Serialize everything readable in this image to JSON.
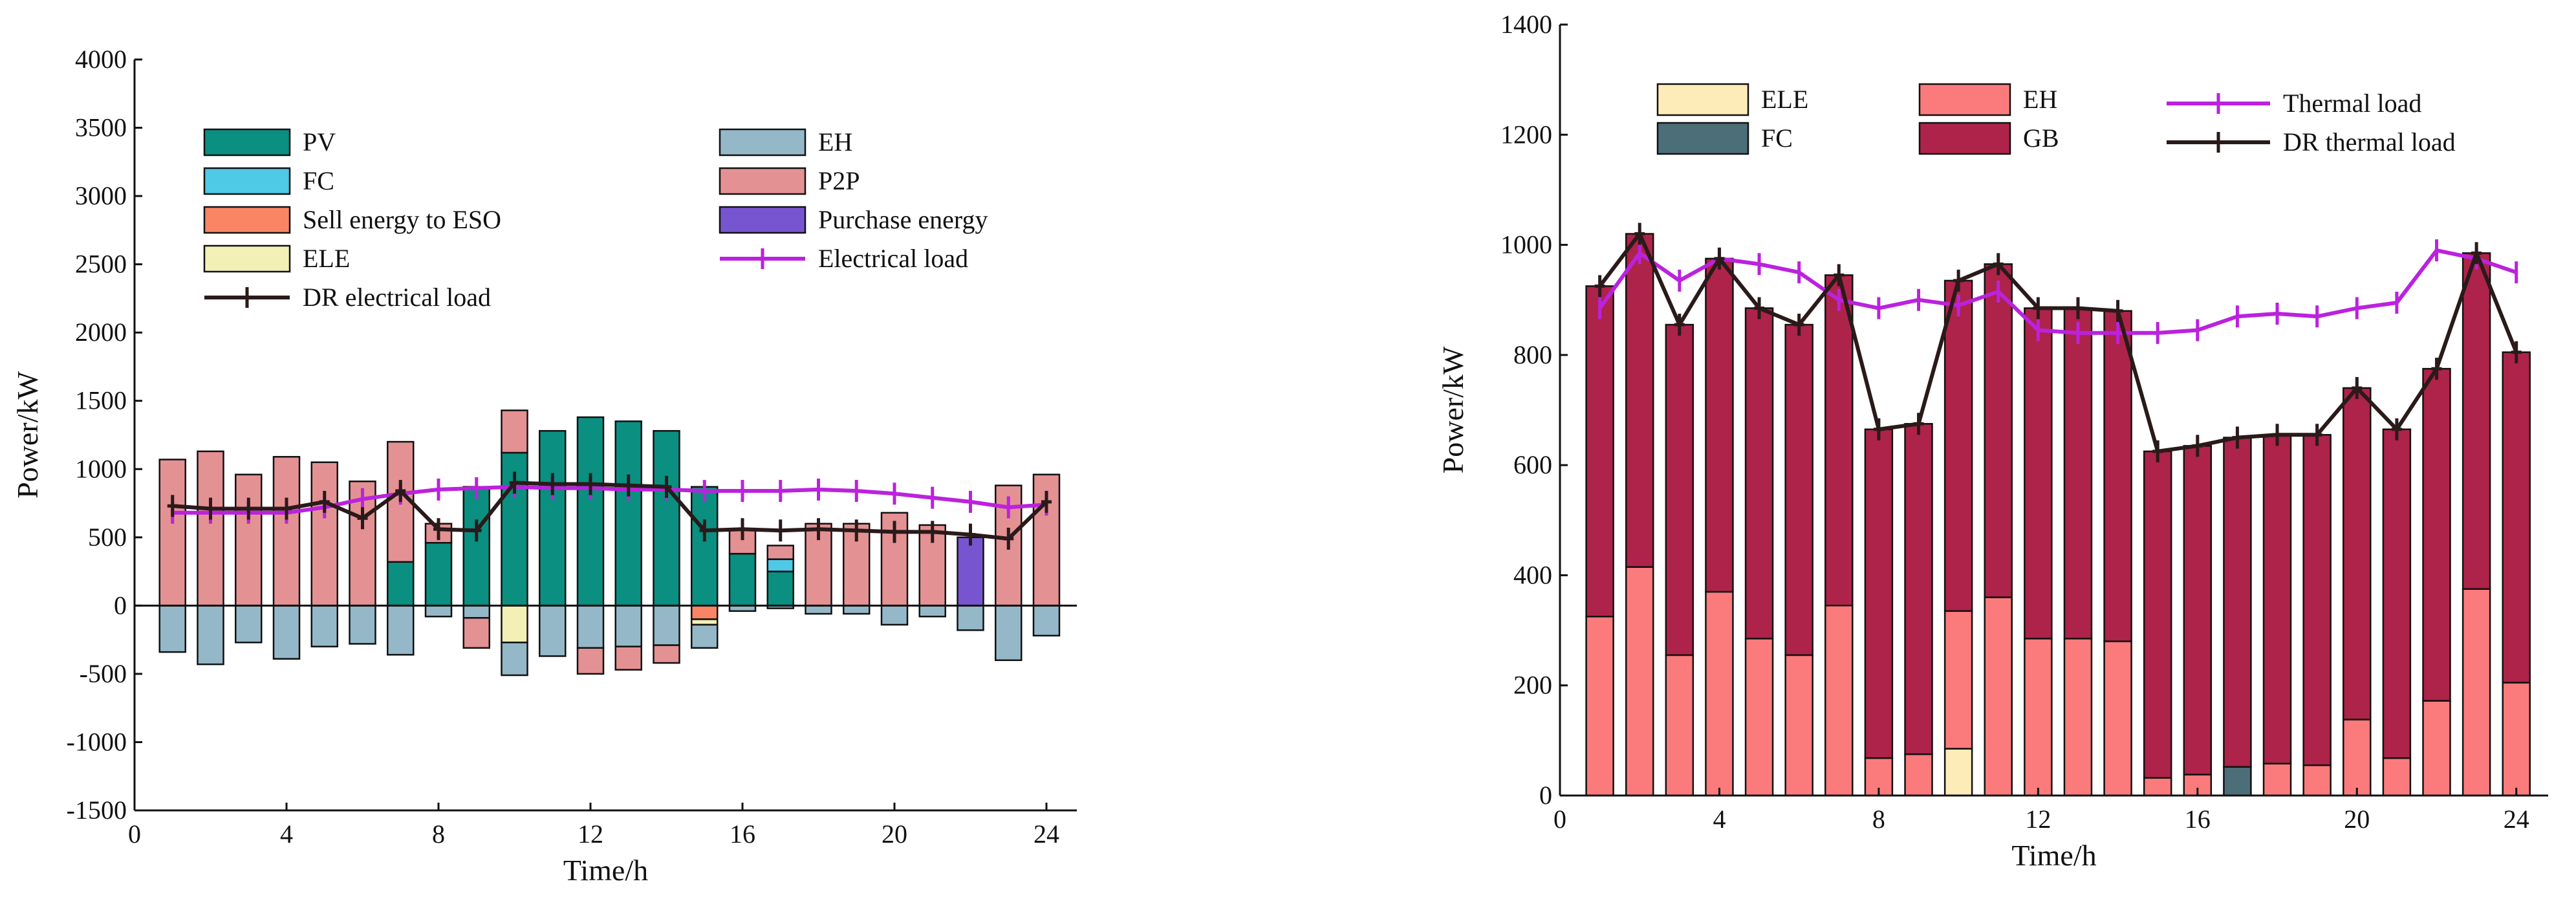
{
  "colors": {
    "PV": "#0a8f80",
    "FC": "#4ec9e6",
    "Sell energy to ESO": "#f98564",
    "ELE": "#f2f0b4",
    "EH": "#94b8c8",
    "P2P": "#e49194",
    "Purchase energy": "#7755d0",
    "Electrical load": "#bb22dd",
    "DR electrical load": "#2a1a1a",
    "ELE_thermal": "#fdebb8",
    "FC_thermal": "#4b6e78",
    "EH_thermal": "#fb7b7c",
    "GB": "#ae2349",
    "Thermal load": "#bb22dd",
    "DR thermal load": "#2a1a1a"
  },
  "chart_data": [
    {
      "type": "bar",
      "title": "",
      "xlabel": "Time/h",
      "ylabel": "Power/kW",
      "xlim": [
        0,
        24.8
      ],
      "ylim": [
        -1500,
        4000
      ],
      "xticks": [
        0,
        4,
        8,
        12,
        16,
        20,
        24
      ],
      "yticks": [
        -1500,
        -1000,
        -500,
        0,
        500,
        1000,
        1500,
        2000,
        2500,
        3000,
        3500,
        4000
      ],
      "grid": false,
      "legend_location": "top",
      "x": [
        1,
        2,
        3,
        4,
        5,
        6,
        7,
        8,
        9,
        10,
        11,
        12,
        13,
        14,
        15,
        16,
        17,
        18,
        19,
        20,
        21,
        22,
        23,
        24
      ],
      "series": [
        {
          "name": "PV",
          "kind": "bar",
          "values": [
            0,
            0,
            0,
            0,
            0,
            0,
            320,
            460,
            870,
            1120,
            1280,
            1380,
            1350,
            1280,
            870,
            380,
            250,
            0,
            0,
            0,
            0,
            0,
            0,
            0
          ]
        },
        {
          "name": "FC",
          "kind": "bar",
          "values": [
            0,
            0,
            0,
            0,
            0,
            0,
            0,
            0,
            0,
            0,
            0,
            0,
            0,
            0,
            0,
            0,
            90,
            0,
            0,
            0,
            0,
            0,
            0,
            0
          ]
        },
        {
          "name": "Sell energy to ESO",
          "kind": "bar",
          "values": [
            0,
            0,
            0,
            0,
            0,
            0,
            0,
            0,
            0,
            0,
            0,
            0,
            0,
            0,
            -100,
            0,
            0,
            0,
            0,
            0,
            0,
            0,
            0,
            0
          ]
        },
        {
          "name": "ELE",
          "kind": "bar",
          "values": [
            0,
            0,
            0,
            0,
            0,
            0,
            0,
            0,
            0,
            -270,
            0,
            0,
            0,
            0,
            -40,
            0,
            0,
            0,
            0,
            0,
            0,
            0,
            0,
            0
          ]
        },
        {
          "name": "EH",
          "kind": "bar",
          "values": [
            -340,
            -430,
            -270,
            -390,
            -300,
            -280,
            -360,
            -80,
            -90,
            -240,
            -370,
            -310,
            -300,
            -290,
            -170,
            -40,
            -20,
            -60,
            -60,
            -140,
            -80,
            -180,
            -400,
            -220
          ]
        },
        {
          "name": "P2P",
          "kind": "bar",
          "values": [
            1070,
            1130,
            960,
            1090,
            1050,
            910,
            880,
            140,
            0,
            310,
            0,
            0,
            0,
            0,
            0,
            180,
            100,
            600,
            600,
            680,
            590,
            0,
            880,
            960
          ]
        },
        {
          "name": "P2P (negative)",
          "kind": "bar",
          "values": [
            0,
            0,
            0,
            0,
            0,
            0,
            0,
            0,
            -220,
            0,
            0,
            -190,
            -170,
            -130,
            0,
            0,
            0,
            0,
            0,
            0,
            0,
            0,
            0,
            0
          ]
        },
        {
          "name": "Purchase energy",
          "kind": "bar",
          "values": [
            0,
            0,
            0,
            0,
            0,
            0,
            0,
            0,
            0,
            0,
            0,
            0,
            0,
            0,
            0,
            0,
            0,
            0,
            0,
            0,
            0,
            500,
            0,
            0
          ]
        },
        {
          "name": "Electrical load",
          "kind": "line",
          "values": [
            680,
            680,
            680,
            680,
            720,
            780,
            820,
            850,
            860,
            870,
            860,
            860,
            850,
            850,
            840,
            840,
            840,
            850,
            840,
            820,
            790,
            760,
            720,
            740
          ]
        },
        {
          "name": "DR electrical load",
          "kind": "line",
          "values": [
            730,
            710,
            710,
            710,
            760,
            640,
            840,
            560,
            550,
            900,
            890,
            890,
            880,
            870,
            550,
            560,
            550,
            560,
            550,
            540,
            540,
            520,
            490,
            760
          ]
        }
      ],
      "legend": [
        "PV",
        "FC",
        "Sell energy to ESO",
        "ELE",
        "DR  electrical load",
        "EH",
        "P2P",
        "Purchase energy",
        "Electrical load"
      ]
    },
    {
      "type": "bar",
      "title": "",
      "xlabel": "Time/h",
      "ylabel": "Power/kW",
      "xlim": [
        0,
        24.8
      ],
      "ylim": [
        0,
        1400
      ],
      "xticks": [
        0,
        4,
        8,
        12,
        16,
        20,
        24
      ],
      "yticks": [
        0,
        200,
        400,
        600,
        800,
        1000,
        1200,
        1400
      ],
      "grid": false,
      "legend_location": "top",
      "x": [
        1,
        2,
        3,
        4,
        5,
        6,
        7,
        8,
        9,
        10,
        11,
        12,
        13,
        14,
        15,
        16,
        17,
        18,
        19,
        20,
        21,
        22,
        23,
        24
      ],
      "series": [
        {
          "name": "ELE",
          "kind": "bar",
          "values": [
            0,
            0,
            0,
            0,
            0,
            0,
            0,
            0,
            0,
            85,
            0,
            0,
            0,
            0,
            0,
            0,
            0,
            0,
            0,
            0,
            0,
            0,
            0,
            0
          ]
        },
        {
          "name": "FC",
          "kind": "bar",
          "values": [
            0,
            0,
            0,
            0,
            0,
            0,
            0,
            0,
            0,
            0,
            0,
            0,
            0,
            0,
            0,
            0,
            52,
            0,
            0,
            0,
            0,
            0,
            0,
            0
          ]
        },
        {
          "name": "EH",
          "kind": "bar",
          "values": [
            325,
            415,
            255,
            370,
            285,
            255,
            345,
            68,
            75,
            250,
            360,
            285,
            285,
            280,
            32,
            38,
            0,
            58,
            55,
            138,
            68,
            172,
            375,
            205
          ]
        },
        {
          "name": "GB",
          "kind": "bar",
          "values": [
            600,
            600,
            600,
            600,
            600,
            600,
            600,
            600,
            600,
            600,
            600,
            600,
            600,
            600,
            600,
            600,
            600,
            600,
            600,
            600,
            600,
            600,
            600,
            600
          ]
        },
        {
          "name": "Thermal load",
          "kind": "line",
          "values": [
            885,
            985,
            935,
            975,
            965,
            950,
            900,
            885,
            900,
            890,
            915,
            845,
            840,
            840,
            840,
            845,
            870,
            875,
            870,
            885,
            895,
            990,
            975,
            950
          ]
        },
        {
          "name": "DR thermal load",
          "kind": "line",
          "values": [
            925,
            1020,
            855,
            975,
            885,
            855,
            945,
            665,
            675,
            935,
            965,
            885,
            885,
            880,
            625,
            635,
            650,
            655,
            655,
            740,
            665,
            775,
            985,
            805
          ]
        }
      ],
      "legend": [
        "ELE",
        "FC",
        "EH",
        "GB",
        "Thermal load",
        "DR thermal load"
      ]
    }
  ]
}
